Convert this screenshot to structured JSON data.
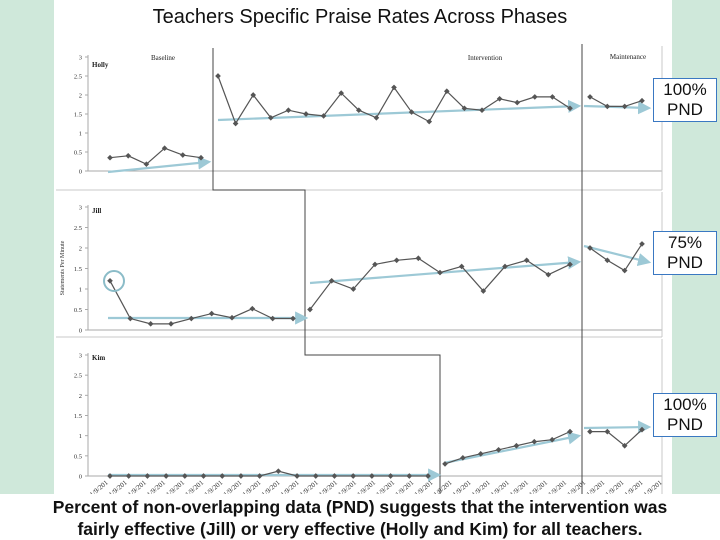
{
  "title": "Teachers Specific Praise Rates Across Phases",
  "caption_line1": "Percent of non-overlapping data (PND) suggests that the intervention was",
  "caption_line2": "fairly effective (Jill) or very effective (Holly and Kim) for all teachers.",
  "colors": {
    "background": "#cfe8da",
    "data": "#555555",
    "trend": "#9dc9d6",
    "phase_line": "#444444",
    "callout_border": "#3a78c2",
    "circle": "#8bbcc8"
  },
  "x_tick_label": "1/9/201",
  "y_axis_title": "Statements Per Minute",
  "chart_data": [
    {
      "type": "line",
      "participant": "Holly",
      "phase_labels": [
        "Baseline",
        "Intervention",
        "Maintenance"
      ],
      "ylim": [
        0,
        3
      ],
      "yticks": [
        "0",
        "0.5",
        "1",
        "1.5",
        "2",
        "2.5",
        "3"
      ],
      "baseline": [
        0.35,
        0.4,
        0.18,
        0.6,
        0.42,
        0.35
      ],
      "intervention": [
        2.5,
        1.25,
        2.0,
        1.4,
        1.6,
        1.5,
        1.45,
        2.05,
        1.6,
        1.4,
        2.2,
        1.55,
        1.3,
        2.1,
        1.65,
        1.6,
        1.9,
        1.8,
        1.95,
        1.95,
        1.65
      ],
      "maintenance": [
        1.95,
        1.7,
        1.7,
        1.85
      ],
      "pnd": [
        "100%",
        "PND"
      ]
    },
    {
      "type": "line",
      "participant": "Jill",
      "ylim": [
        0,
        3
      ],
      "yticks": [
        "0",
        "0.5",
        "1",
        "1.5",
        "2",
        "2.5",
        "3"
      ],
      "baseline": [
        1.2,
        0.28,
        0.15,
        0.15,
        0.28,
        0.4,
        0.3,
        0.52,
        0.28,
        0.28
      ],
      "intervention": [
        0.5,
        1.2,
        1.0,
        1.6,
        1.7,
        1.75,
        1.4,
        1.55,
        0.95,
        1.55,
        1.7,
        1.35,
        1.6
      ],
      "maintenance": [
        2.0,
        1.7,
        1.45,
        2.1
      ],
      "pnd": [
        "75%",
        "PND"
      ]
    },
    {
      "type": "line",
      "participant": "Kim",
      "ylim": [
        0,
        3
      ],
      "yticks": [
        "0",
        "0.5",
        "1",
        "1.5",
        "2",
        "2.5",
        "3"
      ],
      "baseline": [
        0,
        0,
        0,
        0,
        0,
        0,
        0,
        0,
        0,
        0.12,
        0,
        0,
        0,
        0,
        0,
        0,
        0,
        0
      ],
      "intervention": [
        0.3,
        0.45,
        0.55,
        0.65,
        0.75,
        0.85,
        0.9,
        1.1
      ],
      "maintenance": [
        1.1,
        1.1,
        0.75,
        1.15
      ],
      "pnd": [
        "100%",
        "PND"
      ]
    }
  ]
}
